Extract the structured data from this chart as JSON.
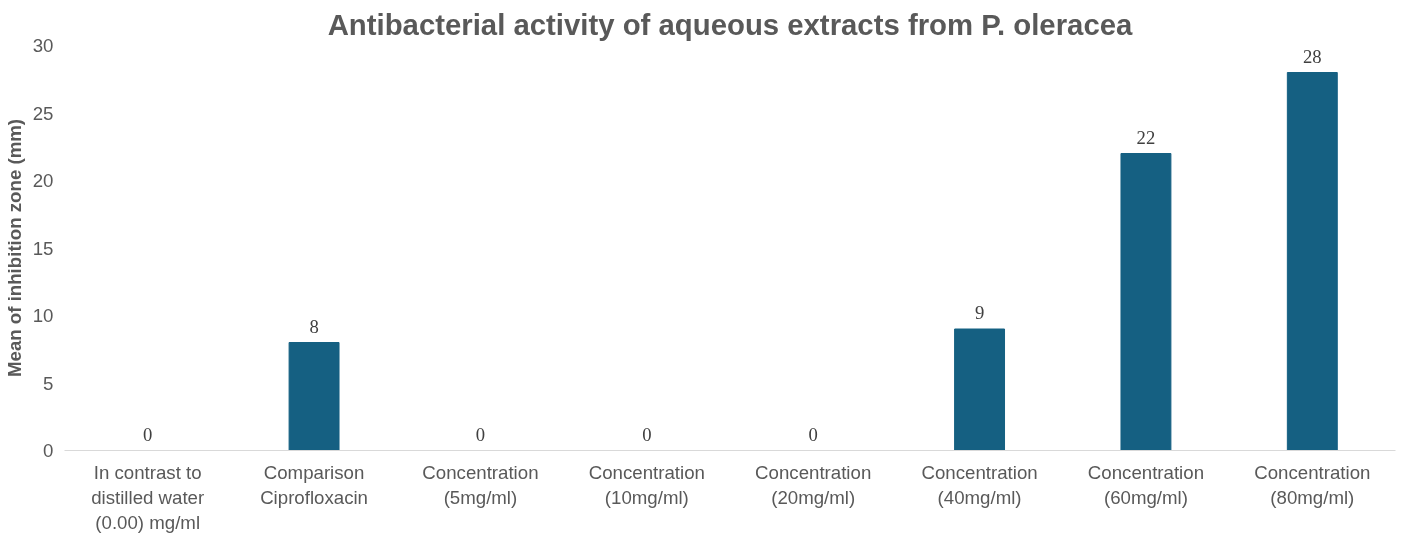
{
  "chart_data": {
    "type": "bar",
    "title": "Antibacterial activity of aqueous extracts from P. oleracea",
    "ylabel": "Mean of inhibition zone (mm)",
    "categories": [
      "In contrast to\ndistilled water\n(0.00) mg/ml",
      "Comparison\nCiprofloxacin",
      "Concentration\n(5mg/ml)",
      "Concentration\n(10mg/ml)",
      "Concentration\n(20mg/ml)",
      "Concentration\n(40mg/ml)",
      "Concentration\n(60mg/ml)",
      "Concentration\n(80mg/ml)"
    ],
    "values": [
      0,
      8,
      0,
      0,
      0,
      9,
      22,
      28
    ],
    "color": "#156082",
    "ylim": [
      0,
      30
    ],
    "yticks": [
      0,
      5,
      10,
      15,
      20,
      25,
      30
    ],
    "grid": false,
    "data_labels": true
  }
}
